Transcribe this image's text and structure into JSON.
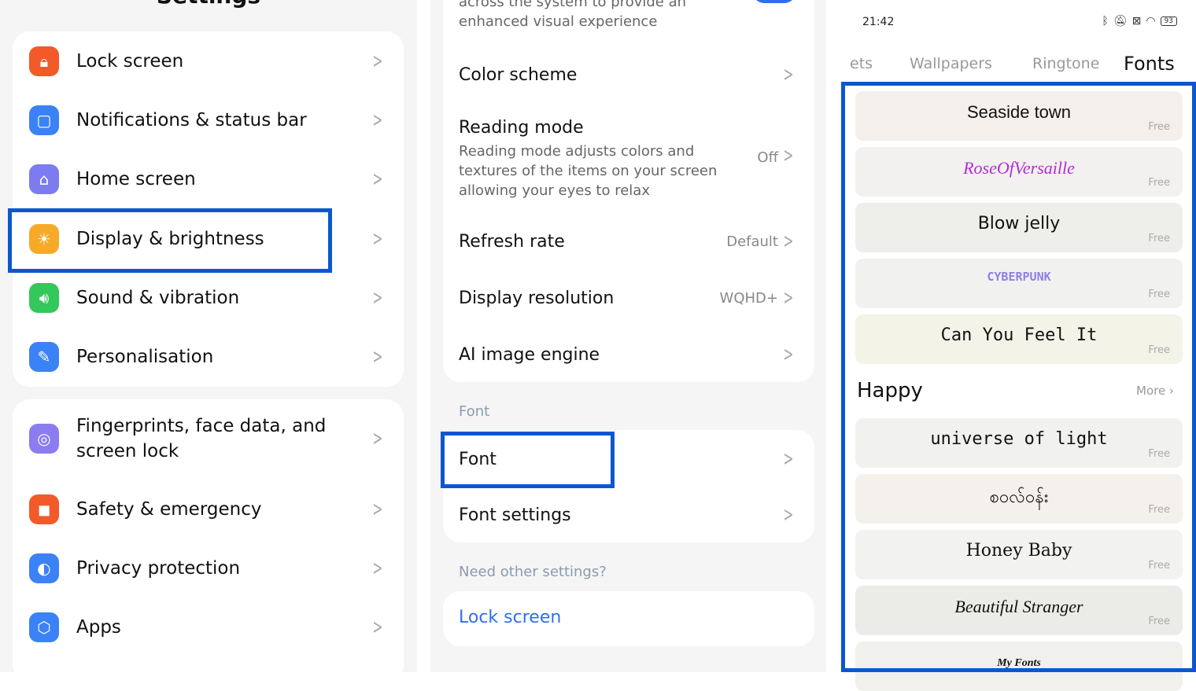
{
  "left": {
    "title": "Settings",
    "group1": [
      {
        "label": "Lock screen",
        "icon": "lock-icon",
        "color": "#f25a2a"
      },
      {
        "label": "Notifications & status bar",
        "icon": "notification-icon",
        "color": "#3b82f6"
      },
      {
        "label": "Home screen",
        "icon": "home-icon",
        "color": "#7c7cf0"
      },
      {
        "label": "Display & brightness",
        "icon": "sun-icon",
        "color": "#f7a928"
      },
      {
        "label": "Sound & vibration",
        "icon": "speaker-icon",
        "color": "#34c759"
      },
      {
        "label": "Personalisation",
        "icon": "brush-icon",
        "color": "#3b82f6"
      }
    ],
    "group2": [
      {
        "label": "Fingerprints, face data, and screen lock",
        "icon": "fingerprint-icon",
        "color": "#8b7cf0"
      },
      {
        "label": "Safety & emergency",
        "icon": "alert-icon",
        "color": "#f25a2a"
      },
      {
        "label": "Privacy protection",
        "icon": "privacy-icon",
        "color": "#3b82f6"
      },
      {
        "label": "Apps",
        "icon": "apps-icon",
        "color": "#3b82f6"
      }
    ]
  },
  "mid": {
    "top_desc": "across the system to provide an enhanced visual experience",
    "toggle_on": true,
    "color_scheme": "Color scheme",
    "reading_mode": {
      "label": "Reading mode",
      "desc": "Reading mode adjusts colors and textures of the items on your screen allowing your eyes to relax",
      "value": "Off"
    },
    "refresh_rate": {
      "label": "Refresh rate",
      "value": "Default"
    },
    "resolution": {
      "label": "Display resolution",
      "value": "WQHD+"
    },
    "ai_engine": "AI image engine",
    "font_section": "Font",
    "font": "Font",
    "font_settings": "Font settings",
    "need_other": "Need other settings?",
    "lock_screen_link": "Lock screen"
  },
  "right": {
    "time": "21:42",
    "battery": "93",
    "tabs": [
      "ets",
      "Wallpapers",
      "Ringtone",
      "Fonts"
    ],
    "active_tab": "Fonts",
    "fonts1": [
      {
        "name": "Seaside town",
        "price": "Free",
        "bg": "#f4efeb"
      },
      {
        "name": "RoseOfVersaille",
        "price": "Free",
        "bg": "#f3f1ef"
      },
      {
        "name": "Blow jelly",
        "price": "Free",
        "bg": "#eeeeea"
      },
      {
        "name": "CYBERPUNK",
        "price": "Free",
        "bg": "#f1f2ef"
      },
      {
        "name": "Can You Feel It",
        "price": "Free",
        "bg": "#f4f3e8"
      }
    ],
    "section": "Happy",
    "more": "More",
    "fonts2": [
      {
        "name": "universe of light",
        "price": "Free",
        "bg": "#f1f2ef"
      },
      {
        "name": "စဝလ်ဝန်း",
        "price": "Free",
        "bg": "#f4f0ec"
      },
      {
        "name": "Honey Baby",
        "price": "Free",
        "bg": "#f2f2f0"
      },
      {
        "name": "Beautiful Stranger",
        "price": "Free",
        "bg": "#ebebe8"
      },
      {
        "name": "My Fonts",
        "price": "",
        "bg": "#f0f0ed"
      }
    ],
    "accent": "#0b57d0"
  }
}
